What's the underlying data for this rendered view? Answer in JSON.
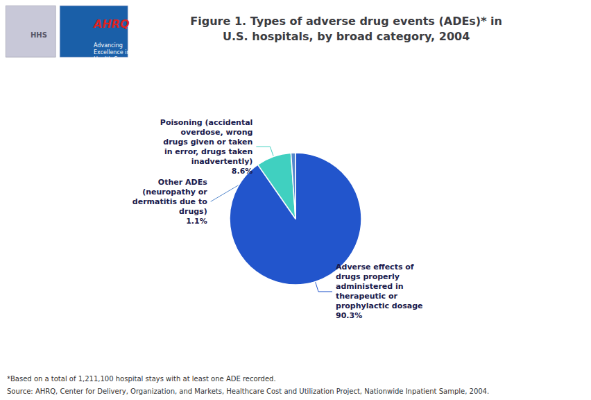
{
  "chart_data": {
    "type": "pie",
    "title": "Figure 1. Types of adverse drug events (ADEs)* in\nU.S. hospitals, by broad category, 2004",
    "categories": [
      "Adverse effects of\ndrugs properly\nadministered in\ntherapeutic or\nprophylactic dosage\n90.3%",
      "Poisoning (accidental\noverdose, wrong\ndrugs given or taken\nin error, drugs taken\ninadvertently)\n8.6%",
      "Other ADEs\n(neuropathy or\ndermatitis due to\ndrugs)\n1.1%"
    ],
    "values": [
      90.3,
      8.6,
      1.1
    ],
    "colors": [
      "#2255cc",
      "#40d0c0",
      "#5588cc"
    ],
    "annotations": [
      "HHS",
      "AHRQ",
      "Advancing\nExcellence in\nHealth Care",
      "*Based on a total of 1,211,100 hospital stays with at least one ADE recorded.",
      "Source: AHRQ, Center for Delivery, Organization, and Markets, Healthcare Cost and Utilization Project, Nationwide Inpatient Sample, 2004."
    ]
  }
}
